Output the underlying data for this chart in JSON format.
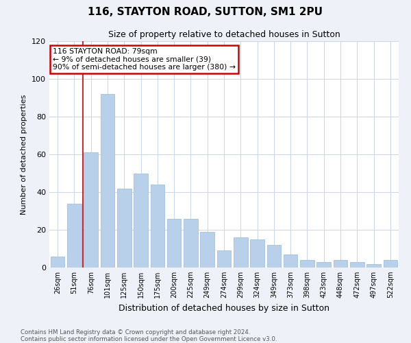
{
  "title": "116, STAYTON ROAD, SUTTON, SM1 2PU",
  "subtitle": "Size of property relative to detached houses in Sutton",
  "xlabel": "Distribution of detached houses by size in Sutton",
  "ylabel": "Number of detached properties",
  "footnote1": "Contains HM Land Registry data © Crown copyright and database right 2024.",
  "footnote2": "Contains public sector information licensed under the Open Government Licence v3.0.",
  "bar_labels": [
    "26sqm",
    "51sqm",
    "76sqm",
    "101sqm",
    "125sqm",
    "150sqm",
    "175sqm",
    "200sqm",
    "225sqm",
    "249sqm",
    "274sqm",
    "299sqm",
    "324sqm",
    "349sqm",
    "373sqm",
    "398sqm",
    "423sqm",
    "448sqm",
    "472sqm",
    "497sqm",
    "522sqm"
  ],
  "bar_values": [
    6,
    34,
    61,
    92,
    42,
    50,
    44,
    26,
    26,
    19,
    9,
    16,
    15,
    12,
    7,
    4,
    3,
    4,
    3,
    2,
    4
  ],
  "bar_color": "#b8d0ea",
  "bar_edge_color": "#9ab8d8",
  "annotation_line1": "116 STAYTON ROAD: 79sqm",
  "annotation_line2": "← 9% of detached houses are smaller (39)",
  "annotation_line3": "90% of semi-detached houses are larger (380) →",
  "annotation_box_color": "#ffffff",
  "annotation_box_edge_color": "#cc0000",
  "vline_color": "#cc0000",
  "ylim": [
    0,
    120
  ],
  "yticks": [
    0,
    20,
    40,
    60,
    80,
    100,
    120
  ],
  "bg_color": "#eef2f8",
  "plot_bg_color": "#ffffff",
  "grid_color": "#c8d4e8"
}
